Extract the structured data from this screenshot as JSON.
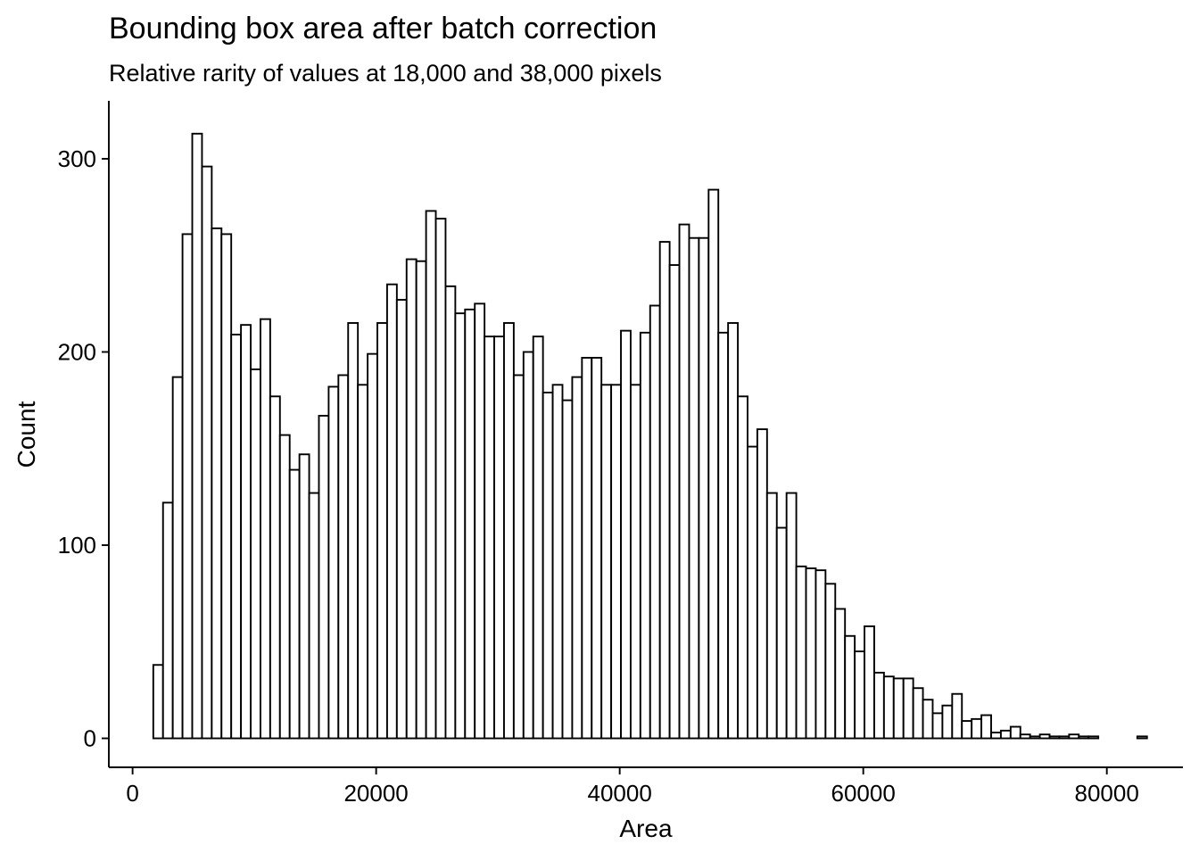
{
  "chart_data": {
    "type": "bar",
    "title": "Bounding box area after batch correction",
    "subtitle": "Relative rarity of values at 18,000 and 38,000 pixels",
    "xlabel": "Area",
    "ylabel": "Count",
    "xlim": [
      -1950,
      86250
    ],
    "ylim": [
      -15,
      330
    ],
    "grid": false,
    "x_ticks": [
      0,
      20000,
      40000,
      60000,
      80000
    ],
    "x_tick_labels": [
      "0",
      "20000",
      "40000",
      "60000",
      "80000"
    ],
    "y_ticks": [
      0,
      100,
      200,
      300
    ],
    "y_tick_labels": [
      "0",
      "100",
      "200",
      "300"
    ],
    "bin_width": 800,
    "x": [
      2100,
      2900,
      3700,
      4500,
      5300,
      6100,
      6900,
      7700,
      8500,
      9300,
      10100,
      10900,
      11700,
      12500,
      13300,
      14100,
      14900,
      15700,
      16500,
      17300,
      18100,
      18900,
      19700,
      20500,
      21300,
      22100,
      22900,
      23700,
      24500,
      25300,
      26100,
      26900,
      27700,
      28500,
      29300,
      30100,
      30900,
      31700,
      32500,
      33300,
      34100,
      34900,
      35700,
      36500,
      37300,
      38100,
      38900,
      39700,
      40500,
      41300,
      42100,
      42900,
      43700,
      44500,
      45300,
      46100,
      46900,
      47700,
      48500,
      49300,
      50100,
      50900,
      51700,
      52500,
      53300,
      54100,
      54900,
      55700,
      56500,
      57300,
      58100,
      58900,
      59700,
      60500,
      61300,
      62100,
      62900,
      63700,
      64500,
      65300,
      66100,
      66900,
      67700,
      68500,
      69300,
      70100,
      70900,
      71700,
      72500,
      73300,
      74100,
      74900,
      75700,
      76500,
      77300,
      78100,
      78900,
      79700,
      80500,
      81300,
      82100,
      82900
    ],
    "values": [
      38,
      122,
      187,
      261,
      313,
      296,
      264,
      261,
      209,
      214,
      191,
      217,
      177,
      157,
      139,
      147,
      127,
      167,
      182,
      188,
      215,
      183,
      199,
      215,
      235,
      227,
      248,
      247,
      273,
      269,
      234,
      220,
      222,
      225,
      208,
      208,
      215,
      188,
      200,
      208,
      179,
      183,
      175,
      187,
      197,
      197,
      183,
      183,
      211,
      183,
      210,
      224,
      257,
      245,
      266,
      259,
      259,
      284,
      210,
      215,
      177,
      151,
      160,
      127,
      109,
      127,
      89,
      88,
      87,
      80,
      67,
      53,
      45,
      58,
      34,
      32,
      31,
      31,
      26,
      20,
      13,
      17,
      23,
      9,
      10,
      12,
      3,
      4,
      6,
      2,
      1,
      2,
      1,
      1,
      2,
      1,
      1,
      0,
      0,
      0,
      0,
      1
    ]
  }
}
